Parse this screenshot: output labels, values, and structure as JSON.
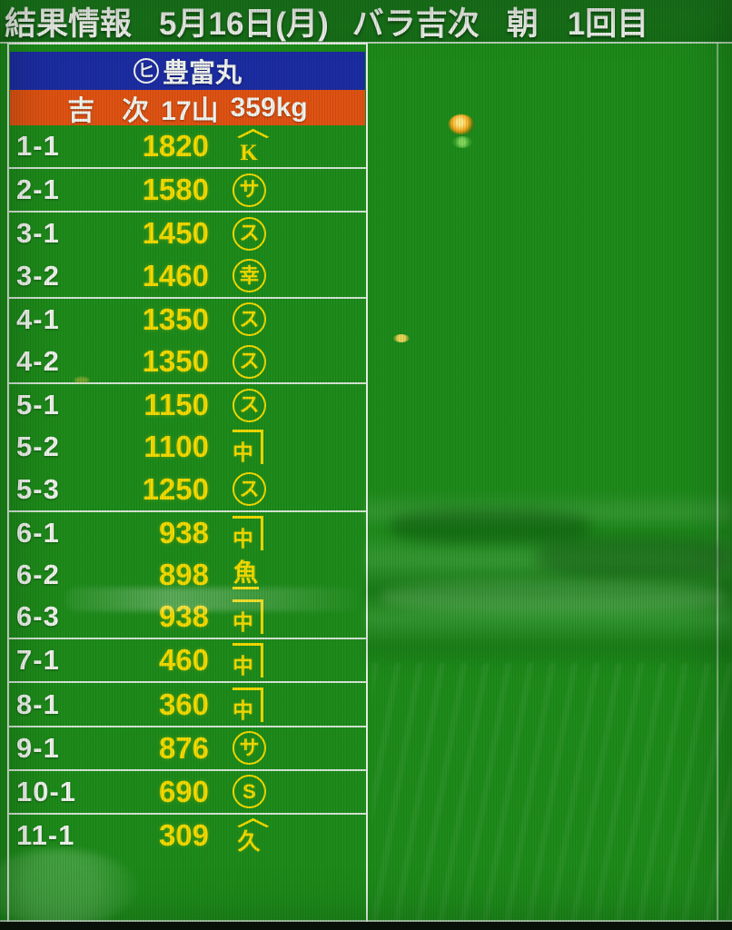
{
  "top_bar": {
    "title": "結果情報",
    "date": "5月16日(月)",
    "product": "バラ吉次",
    "session": "朝",
    "round": "1回目"
  },
  "board": {
    "vessel_mark": "ヒ",
    "vessel_name": "豊富丸",
    "lot_summary": {
      "species": "吉　次",
      "count": "17山",
      "weight": "359kg"
    },
    "groups": [
      {
        "rows": [
          {
            "lot": "1-1",
            "price": "1820",
            "mark": {
              "type": "yama",
              "char": "K"
            }
          }
        ]
      },
      {
        "rows": [
          {
            "lot": "2-1",
            "price": "1580",
            "mark": {
              "type": "circle",
              "char": "サ"
            }
          }
        ]
      },
      {
        "rows": [
          {
            "lot": "3-1",
            "price": "1450",
            "mark": {
              "type": "circle",
              "char": "ス"
            }
          },
          {
            "lot": "3-2",
            "price": "1460",
            "mark": {
              "type": "circle",
              "char": "幸"
            }
          }
        ]
      },
      {
        "rows": [
          {
            "lot": "4-1",
            "price": "1350",
            "mark": {
              "type": "circle",
              "char": "ス"
            }
          },
          {
            "lot": "4-2",
            "price": "1350",
            "mark": {
              "type": "circle",
              "char": "ス"
            }
          }
        ]
      },
      {
        "rows": [
          {
            "lot": "5-1",
            "price": "1150",
            "mark": {
              "type": "circle",
              "char": "ス"
            }
          },
          {
            "lot": "5-2",
            "price": "1100",
            "mark": {
              "type": "kane",
              "char": "中"
            }
          },
          {
            "lot": "5-3",
            "price": "1250",
            "mark": {
              "type": "circle",
              "char": "ス"
            }
          }
        ]
      },
      {
        "rows": [
          {
            "lot": "6-1",
            "price": "938",
            "mark": {
              "type": "kane",
              "char": "中"
            }
          },
          {
            "lot": "6-2",
            "price": "898",
            "mark": {
              "type": "fish",
              "char": "魚"
            }
          },
          {
            "lot": "6-3",
            "price": "938",
            "mark": {
              "type": "kane",
              "char": "中"
            }
          }
        ]
      },
      {
        "rows": [
          {
            "lot": "7-1",
            "price": "460",
            "mark": {
              "type": "kane",
              "char": "中"
            }
          }
        ]
      },
      {
        "rows": [
          {
            "lot": "8-1",
            "price": "360",
            "mark": {
              "type": "kane",
              "char": "中"
            }
          }
        ]
      },
      {
        "rows": [
          {
            "lot": "9-1",
            "price": "876",
            "mark": {
              "type": "circle",
              "char": "サ"
            }
          }
        ]
      },
      {
        "rows": [
          {
            "lot": "10-1",
            "price": "690",
            "mark": {
              "type": "circle",
              "char": "S"
            }
          }
        ]
      },
      {
        "rows": [
          {
            "lot": "11-1",
            "price": "309",
            "mark": {
              "type": "yama",
              "char": "久"
            }
          }
        ]
      }
    ]
  },
  "colors": {
    "screen_green": "#1e8b1b",
    "topbar_green": "#1a771b",
    "vessel_bar_blue": "#1c2ca3",
    "summary_bar_orange": "#e05213",
    "accent_yellow": "#f4da00",
    "text_white": "#f1f3ee"
  }
}
